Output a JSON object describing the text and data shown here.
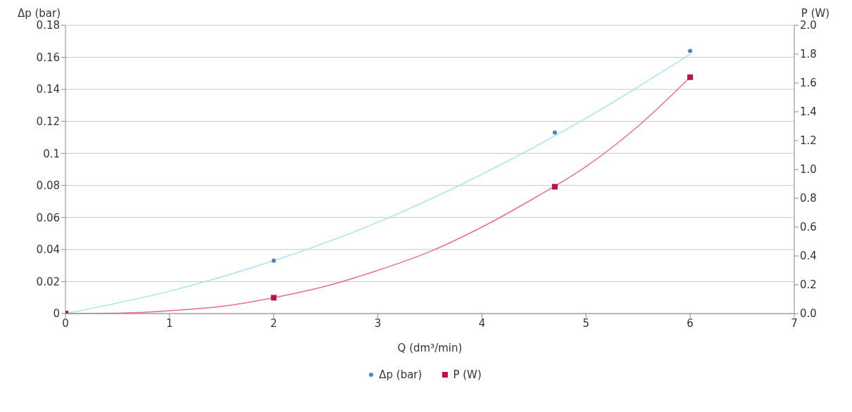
{
  "chart_data": {
    "type": "scatter",
    "xlabel": "Q (dm³/min)",
    "ylabel": "Δp (bar)",
    "y2label": "P (W)",
    "xlim": [
      0,
      7
    ],
    "xticks": [
      0,
      1,
      2,
      3,
      4,
      5,
      6,
      7
    ],
    "ylim": [
      0,
      0.18
    ],
    "yticks": [
      0,
      0.02,
      0.04,
      0.06,
      0.08,
      0.1,
      0.12,
      0.14,
      0.16,
      0.18
    ],
    "y2lim": [
      0,
      2
    ],
    "y2ticks": [
      {
        "value": 0,
        "label": "0.0"
      },
      0.2,
      0.4,
      0.6,
      0.8,
      {
        "value": 1,
        "label": "1.0"
      },
      1.2,
      1.4,
      1.6,
      1.8,
      {
        "value": 2,
        "label": "2.0"
      }
    ],
    "grid": "y",
    "legend": "bottom",
    "series": [
      {
        "type": "line",
        "color": "#a6e4ee",
        "marker": "none",
        "x": [
          0,
          1,
          2,
          3,
          4,
          5,
          6
        ],
        "values": [
          0,
          0.014,
          0.033,
          0.057,
          0.087,
          0.122,
          0.162
        ]
      },
      {
        "type": "line",
        "axis": "y2",
        "color": "#e8708c",
        "marker": "none",
        "x": [
          0,
          0.5,
          1,
          1.5,
          2,
          2.5,
          3,
          3.5,
          4,
          4.5,
          5,
          5.5,
          6
        ],
        "values": [
          0,
          0.003,
          0.02,
          0.05,
          0.11,
          0.19,
          0.3,
          0.43,
          0.6,
          0.8,
          1.02,
          1.3,
          1.64
        ]
      },
      {
        "name": "Δp (bar)",
        "color": "#4f81bd",
        "marker": "circle",
        "x": [
          2,
          4.7,
          6
        ],
        "values": [
          0.033,
          0.113,
          0.164
        ]
      },
      {
        "name": "P (W)",
        "axis": "y2",
        "color": "#b8134a",
        "marker": "square",
        "x": [
          0,
          2,
          4.7,
          6
        ],
        "values": [
          0,
          0.11,
          0.88,
          1.64
        ]
      }
    ]
  }
}
